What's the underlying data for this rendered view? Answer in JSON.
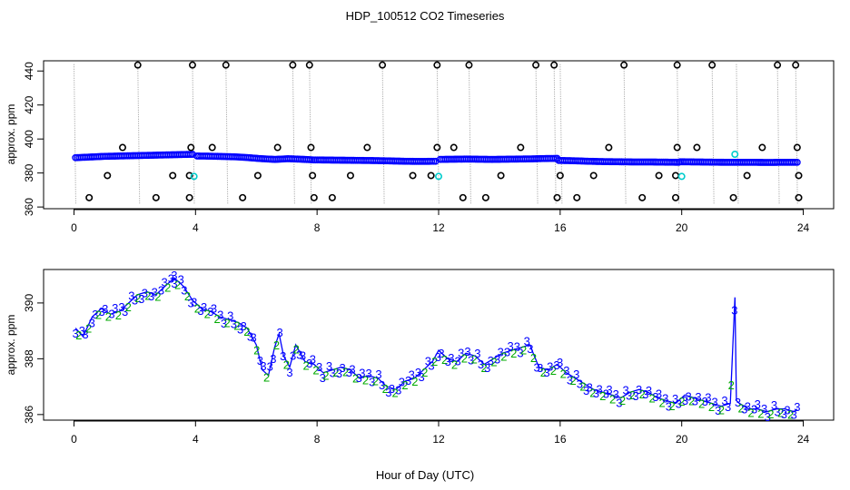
{
  "title": "HDP_100512  CO2 Timeseries",
  "xlabel": "Hour of Day (UTC)",
  "chart_data": [
    {
      "type": "scatter",
      "ylabel": "approx. ppm",
      "xlim": [
        -1,
        25
      ],
      "ylim": [
        359,
        446
      ],
      "xticks": [
        0,
        4,
        8,
        12,
        16,
        20,
        24
      ],
      "yticks": [
        360,
        380,
        400,
        420,
        440
      ],
      "grid": false,
      "colors": {
        "series": "#0000ff",
        "flagged": "#00cccc",
        "outlier": "#000000",
        "spike": "#999999"
      },
      "segments": [
        {
          "x0": 0.05,
          "x1": 3.9,
          "y": [
            389.0,
            389.4,
            389.8,
            390.0,
            390.2,
            390.4,
            390.6,
            390.8,
            391.0
          ]
        },
        {
          "x0": 4.05,
          "x1": 7.9,
          "y": [
            390.0,
            389.9,
            389.7,
            389.5,
            389.0,
            388.4,
            388.0,
            388.4,
            388.1,
            387.7
          ]
        },
        {
          "x0": 7.95,
          "x1": 11.9,
          "y": [
            387.7,
            387.6,
            387.5,
            387.4,
            387.3,
            387.1,
            386.9,
            386.8,
            386.9
          ]
        },
        {
          "x0": 12.05,
          "x1": 15.9,
          "y": [
            388.0,
            388.1,
            388.2,
            388.1,
            388.0,
            388.1,
            388.2,
            388.3,
            388.5,
            388.6
          ]
        },
        {
          "x0": 15.95,
          "x1": 19.9,
          "y": [
            387.4,
            387.2,
            386.9,
            386.7,
            386.6,
            386.5,
            386.5,
            386.4,
            386.3
          ]
        },
        {
          "x0": 19.95,
          "x1": 23.8,
          "y": [
            386.6,
            386.5,
            386.4,
            386.3,
            386.3,
            386.3,
            386.2,
            386.3,
            386.3
          ]
        }
      ],
      "outliers_high": [
        2.1,
        3.9,
        5.0,
        7.2,
        7.75,
        10.15,
        11.95,
        13.0,
        15.2,
        15.8,
        18.1,
        19.85,
        21.0,
        23.15,
        23.75
      ],
      "outliers_low": [
        0.5,
        2.7,
        3.8,
        5.55,
        7.9,
        8.5,
        12.8,
        13.55,
        15.9,
        16.55,
        18.7,
        19.8,
        21.7,
        23.85
      ],
      "outliers_mid_high": [
        1.6,
        3.85,
        4.55,
        6.7,
        7.8,
        9.65,
        11.95,
        12.5,
        14.7,
        17.6,
        19.85,
        20.5,
        22.65,
        23.8
      ],
      "outliers_mid_low": [
        1.1,
        3.25,
        3.8,
        6.05,
        7.85,
        9.1,
        11.15,
        11.75,
        14.05,
        16.0,
        17.1,
        19.25,
        19.8,
        22.15,
        23.85
      ],
      "flagged_points": [
        {
          "x": 3.95,
          "y": 378
        },
        {
          "x": 12.0,
          "y": 378
        },
        {
          "x": 20.0,
          "y": 378
        },
        {
          "x": 21.75,
          "y": 391
        }
      ],
      "spike_lines_x": [
        0.0,
        2.1,
        3.9,
        5.0,
        7.2,
        7.75,
        10.15,
        11.95,
        13.0,
        15.2,
        15.8,
        16.0,
        18.1,
        19.85,
        21.0,
        21.8,
        23.15,
        23.75
      ]
    },
    {
      "type": "line",
      "ylabel": "approx. ppm",
      "xlim": [
        -1,
        25
      ],
      "ylim": [
        385.8,
        391.2
      ],
      "xticks": [
        0,
        4,
        8,
        12,
        16,
        20,
        24
      ],
      "yticks": [
        386,
        388,
        390
      ],
      "grid": false,
      "marker_labels": [
        "2",
        "3"
      ],
      "colors": {
        "label_2": "#00aa00",
        "label_3": "#0000ff"
      },
      "x": [
        0.05,
        0.3,
        0.6,
        0.9,
        1.2,
        1.5,
        1.8,
        2.1,
        2.4,
        2.7,
        3.0,
        3.3,
        3.6,
        3.9,
        4.2,
        4.5,
        4.8,
        5.1,
        5.4,
        5.7,
        6.0,
        6.2,
        6.4,
        6.6,
        6.75,
        6.9,
        7.1,
        7.3,
        7.6,
        7.9,
        8.2,
        8.5,
        8.8,
        9.1,
        9.4,
        9.7,
        10.0,
        10.3,
        10.6,
        10.9,
        11.2,
        11.5,
        11.8,
        12.0,
        12.3,
        12.6,
        12.9,
        13.2,
        13.5,
        13.8,
        14.1,
        14.4,
        14.7,
        15.0,
        15.3,
        15.6,
        15.9,
        16.2,
        16.5,
        16.8,
        17.1,
        17.4,
        17.7,
        18.0,
        18.3,
        18.6,
        18.9,
        19.2,
        19.5,
        19.8,
        20.1,
        20.4,
        20.7,
        21.0,
        21.3,
        21.6,
        21.75,
        21.8,
        21.9,
        22.2,
        22.5,
        22.8,
        23.1,
        23.4,
        23.7,
        23.8
      ],
      "y": [
        389.1,
        388.8,
        389.5,
        389.8,
        389.6,
        389.7,
        390.0,
        390.3,
        390.4,
        390.3,
        390.6,
        390.9,
        390.6,
        390.1,
        389.8,
        389.7,
        389.5,
        389.4,
        389.3,
        389.1,
        388.5,
        387.6,
        387.4,
        388.4,
        388.9,
        388.1,
        387.7,
        388.5,
        387.9,
        387.8,
        387.5,
        387.6,
        387.7,
        387.6,
        387.3,
        387.4,
        387.3,
        387.0,
        386.9,
        387.2,
        387.3,
        387.6,
        387.9,
        388.3,
        388.0,
        387.9,
        388.2,
        388.1,
        387.8,
        388.0,
        388.2,
        388.3,
        388.4,
        388.5,
        387.7,
        387.6,
        387.8,
        387.5,
        387.3,
        387.1,
        386.9,
        386.8,
        386.7,
        386.6,
        386.8,
        386.9,
        386.8,
        386.6,
        386.5,
        386.4,
        386.7,
        386.6,
        386.5,
        386.4,
        386.3,
        386.4,
        390.2,
        386.5,
        386.4,
        386.2,
        386.2,
        386.1,
        386.2,
        386.2,
        386.1,
        386.2
      ]
    }
  ]
}
